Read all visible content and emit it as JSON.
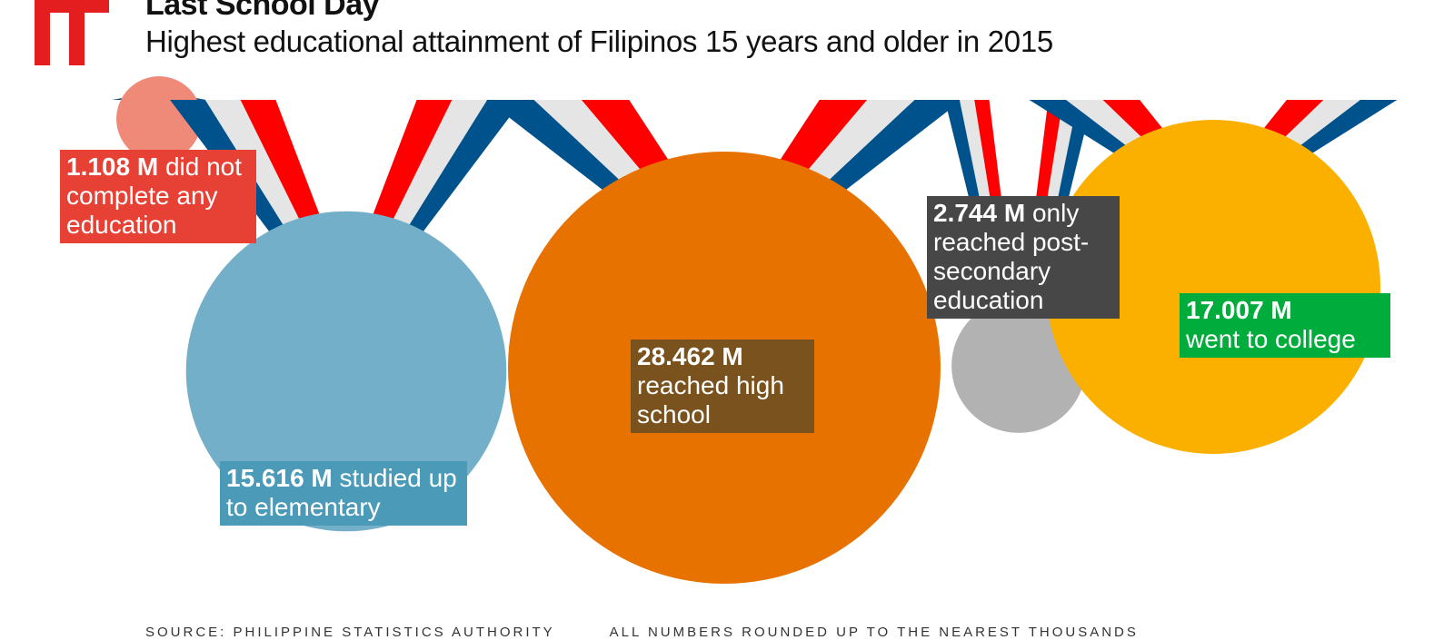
{
  "header": {
    "title": "Last School Day",
    "subtitle": "Highest educational attainment of Filipinos 15 years and older in 2015"
  },
  "colors": {
    "brand_red": "#e41e1f",
    "ribbon_blue": "#00528c",
    "ribbon_red": "#ff0000",
    "ribbon_gray": "#e5e5e5"
  },
  "chart_data": {
    "type": "bubble",
    "title": "Last School Day",
    "subtitle": "Highest educational attainment of Filipinos 15 years and older in 2015",
    "unit": "M",
    "categories": [
      "did not complete any education",
      "studied up to elementary",
      "reached high school",
      "only reached post-secondary education",
      "went to college"
    ],
    "values": [
      1.108,
      15.616,
      28.462,
      2.744,
      17.007
    ],
    "items": [
      {
        "key": "none",
        "value": 1.108,
        "value_text": "1.108 M",
        "text": " did not complete any education",
        "color": "#f08a78",
        "label_color": "#e64134"
      },
      {
        "key": "elementary",
        "value": 15.616,
        "value_text": "15.616 M",
        "text": " studied up to elementary",
        "color": "#73afc8",
        "label_color": "#4a9ab8"
      },
      {
        "key": "highschool",
        "value": 28.462,
        "value_text": "28.462 M",
        "text": " reached high school",
        "color": "#e87200",
        "label_color": "#7a521e"
      },
      {
        "key": "postsecondary",
        "value": 2.744,
        "value_text": "2.744 M",
        "text": " only reached post-secondary education",
        "color": "#b2b2b2",
        "label_color": "#474747"
      },
      {
        "key": "college",
        "value": 17.007,
        "value_text": "17.007 M",
        "text": " went to college",
        "color": "#fbb000",
        "label_color": "#00ad3c"
      }
    ]
  },
  "footer": {
    "source": "SOURCE: PHILIPPINE STATISTICS AUTHORITY",
    "note": "ALL NUMBERS ROUNDED UP TO THE NEAREST THOUSANDS"
  }
}
